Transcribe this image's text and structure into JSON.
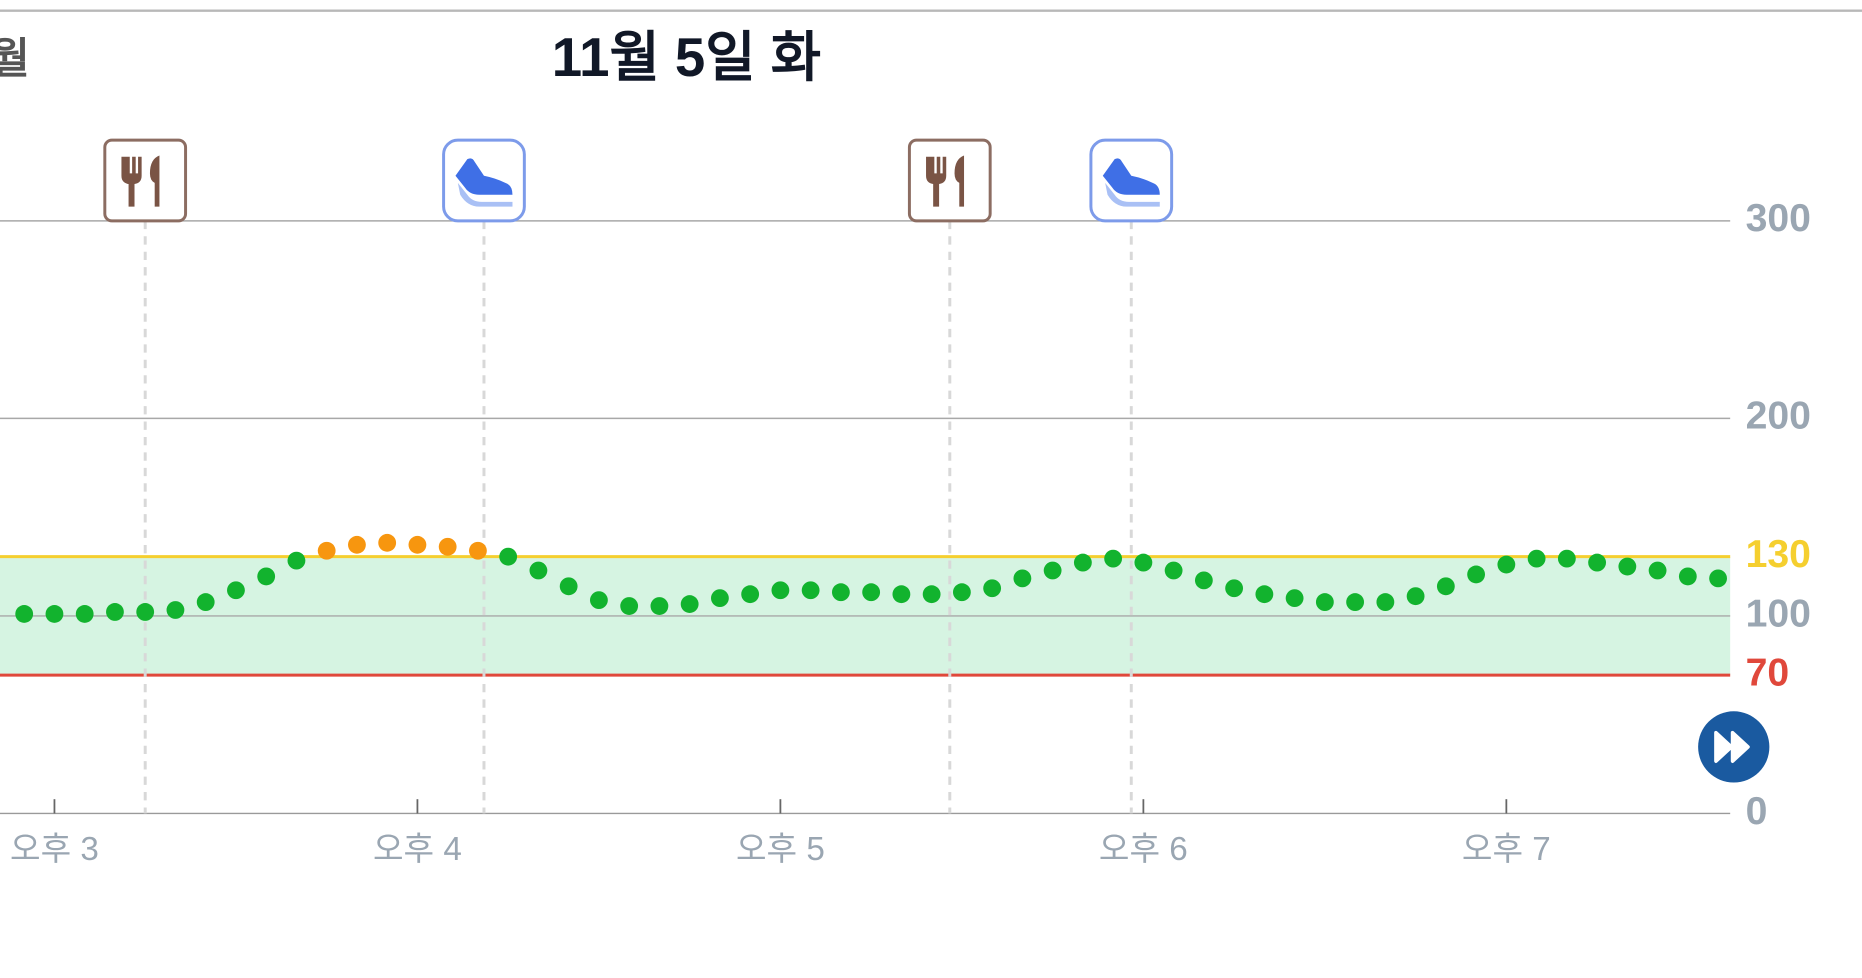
{
  "chart_data": {
    "type": "scatter",
    "title": "11월 5일 화",
    "prev_label": "월",
    "x": [
      "14:55",
      "15:00",
      "15:05",
      "15:10",
      "15:15",
      "15:20",
      "15:25",
      "15:30",
      "15:35",
      "15:40",
      "15:45",
      "15:50",
      "15:55",
      "16:00",
      "16:05",
      "16:10",
      "16:15",
      "16:20",
      "16:25",
      "16:30",
      "16:35",
      "16:40",
      "16:45",
      "16:50",
      "16:55",
      "17:00",
      "17:05",
      "17:10",
      "17:15",
      "17:20",
      "17:25",
      "17:30",
      "17:35",
      "17:40",
      "17:45",
      "17:50",
      "17:55",
      "18:00",
      "18:05",
      "18:10",
      "18:15",
      "18:20",
      "18:25",
      "18:30",
      "18:35",
      "18:40",
      "18:45",
      "18:50",
      "18:55",
      "19:00",
      "19:05",
      "19:10",
      "19:15",
      "19:20",
      "19:25",
      "19:30",
      "19:35"
    ],
    "values": [
      101,
      101,
      101,
      102,
      102,
      103,
      107,
      113,
      120,
      128,
      133,
      136,
      137,
      136,
      135,
      133,
      130,
      123,
      115,
      108,
      105,
      105,
      106,
      109,
      111,
      113,
      113,
      112,
      112,
      111,
      111,
      112,
      114,
      119,
      123,
      127,
      129,
      127,
      123,
      118,
      114,
      111,
      109,
      107,
      107,
      107,
      110,
      115,
      121,
      126,
      129,
      129,
      127,
      125,
      123,
      120,
      119
    ],
    "color": "#12b32e",
    "high_color": "#f7960f",
    "xlim": [
      "14:51",
      "19:37"
    ],
    "xticks": [
      {
        "value": "15:00",
        "label": "오후 3"
      },
      {
        "value": "16:00",
        "label": "오후 4"
      },
      {
        "value": "17:00",
        "label": "오후 5"
      },
      {
        "value": "18:00",
        "label": "오후 6"
      },
      {
        "value": "19:00",
        "label": "오후 7"
      }
    ],
    "ylim": [
      0,
      300
    ],
    "yticks": [
      0,
      100,
      200,
      300
    ],
    "thresholds": [
      {
        "value": 130,
        "color": "#f5cf2f"
      },
      {
        "value": 70,
        "color": "#e0483b"
      }
    ],
    "range_color": "#d6f4e2",
    "events": [
      {
        "type": "meal",
        "x": "15:15"
      },
      {
        "type": "exercise",
        "x": "16:11"
      },
      {
        "type": "meal",
        "x": "17:28"
      },
      {
        "type": "exercise",
        "x": "17:58"
      }
    ]
  }
}
